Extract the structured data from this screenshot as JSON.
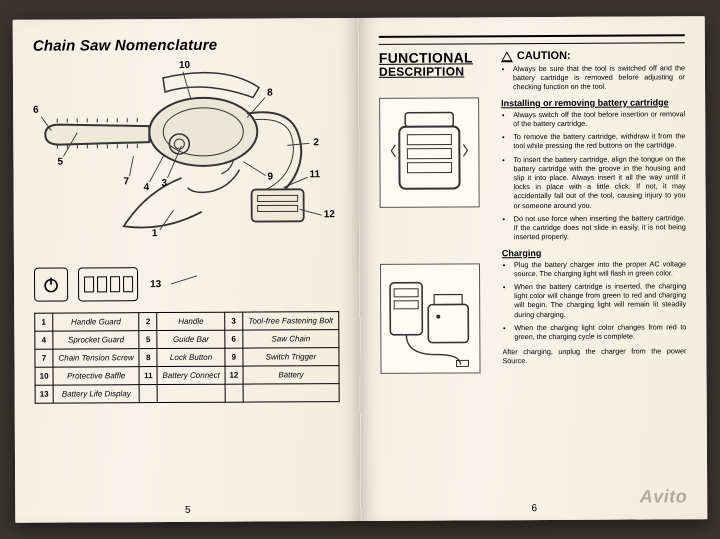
{
  "left": {
    "title": "Chain Saw Nomenclature",
    "callouts": [
      "1",
      "2",
      "3",
      "4",
      "5",
      "6",
      "7",
      "8",
      "9",
      "10",
      "11",
      "12",
      "13"
    ],
    "icon_label": "13",
    "parts_rows": [
      [
        {
          "n": "1",
          "t": "Handle Guard"
        },
        {
          "n": "2",
          "t": "Handle"
        },
        {
          "n": "3",
          "t": "Tool-free Fastening Bolt"
        }
      ],
      [
        {
          "n": "4",
          "t": "Sprocket Guard"
        },
        {
          "n": "5",
          "t": "Guide Bar"
        },
        {
          "n": "6",
          "t": "Saw Chain"
        }
      ],
      [
        {
          "n": "7",
          "t": "Chain Tension Screw"
        },
        {
          "n": "8",
          "t": "Lock Button"
        },
        {
          "n": "9",
          "t": "Switch Trigger"
        }
      ],
      [
        {
          "n": "10",
          "t": "Protective Baffle"
        },
        {
          "n": "11",
          "t": "Battery Connect"
        },
        {
          "n": "12",
          "t": "Battery"
        }
      ],
      [
        {
          "n": "13",
          "t": "Battery Life Display"
        },
        {
          "n": "",
          "t": ""
        },
        {
          "n": "",
          "t": ""
        }
      ]
    ],
    "pagenum": "5"
  },
  "right": {
    "title_line1": "FUNCTIONAL",
    "title_line2": "DESCRIPTION",
    "caution_label": "CAUTION:",
    "caution_bullets": [
      "Always be sure that the tool is switched off and the battery cartridge is removed before adjusting or checking function on the tool."
    ],
    "sect1": "Installing or removing battery cartridge",
    "sect1_bullets": [
      "Always switch off the tool before insertion or removal of the battery cartridge.",
      "To remove the battery cartridge, withdraw it from the tool while pressing the red buttons on the cartridge.",
      "To insert the battery cartridge, align the tongue on the battery cartridge with the groove in the housing and slip it into place. Always insert it all the way until it locks in place with a little click. If not, it may accidentally fall out of the tool, causing injury to you or someone around you.",
      "Do not use force when inserting the battery cartridge. If the cartridge does not slide in easily, it is not being inserted properly."
    ],
    "sect2": "Charging",
    "sect2_bullets": [
      "Plug the battery charger into the proper AC voltage source. The charging light will flash in green color.",
      "When the battery cartridge is inserted, the charging light color will change from green to red and charging will begin. The charging light will remain lit steadily during charging.",
      "When the charging light color changes from red to green, the charging cycle is complete."
    ],
    "after": "After charging, unplug the charger from the power Source.",
    "pagenum": "6",
    "watermark": "Avito"
  },
  "colors": {
    "ink": "#000000",
    "paper": "#f5f0e4",
    "diagram_stroke": "#333333"
  }
}
